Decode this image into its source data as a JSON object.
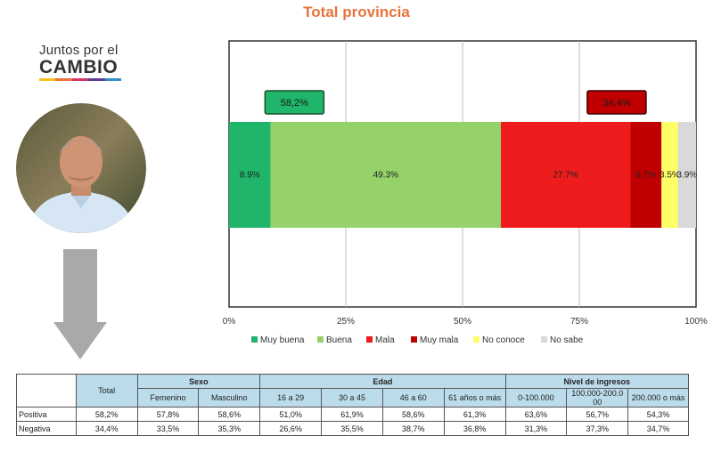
{
  "title": "Total provincia",
  "logo": {
    "line1": "Juntos por el",
    "line2": "CAMBIO",
    "stripe_colors": [
      "#f6c21c",
      "#e8733a",
      "#d6336c",
      "#5b3e96",
      "#2f8fd0"
    ]
  },
  "portrait_icon": "person-photo",
  "arrow_icon": "down-arrow",
  "chart_data": {
    "type": "bar",
    "orientation": "horizontal",
    "stacked": true,
    "title": "Total provincia",
    "xlim": [
      0,
      100
    ],
    "xticks": [
      "0%",
      "25%",
      "50%",
      "75%",
      "100%"
    ],
    "grid": true,
    "legend_position": "bottom",
    "series": [
      {
        "name": "Muy buena",
        "value": 8.9,
        "label": "8.9%",
        "color": "#1fb56a"
      },
      {
        "name": "Buena",
        "value": 49.3,
        "label": "49.3%",
        "color": "#95d26a"
      },
      {
        "name": "Mala",
        "value": 27.7,
        "label": "27.7%",
        "color": "#ee1c1c"
      },
      {
        "name": "Muy mala",
        "value": 6.7,
        "label": "6.7%",
        "color": "#c00000"
      },
      {
        "name": "No conoce",
        "value": 3.5,
        "label": "3.5%",
        "color": "#ffff66"
      },
      {
        "name": "No sabe",
        "value": 3.9,
        "label": "3.9%",
        "color": "#d9d9d9"
      }
    ],
    "annotations": [
      {
        "text": "58,2%",
        "value": 58.2,
        "color": "#1fb56a"
      },
      {
        "text": "34,4%",
        "value": 34.4,
        "color": "#c00000"
      }
    ]
  },
  "table": {
    "col_total": "Total",
    "groups": [
      "Sexo",
      "Edad",
      "Nivel de ingresos"
    ],
    "subheaders": [
      "Femenino",
      "Masculino",
      "16 a 29",
      "30 a 45",
      "46 a 60",
      "61 años o más",
      "0-100.000",
      "100.000-200.0\n00",
      "200.000 o más"
    ],
    "rows": [
      {
        "label": "Positiva",
        "values": [
          "58,2%",
          "57,8%",
          "58,6%",
          "51,0%",
          "61,9%",
          "58,6%",
          "61,3%",
          "63,6%",
          "56,7%",
          "54,3%"
        ]
      },
      {
        "label": "Negativa",
        "values": [
          "34,4%",
          "33,5%",
          "35,3%",
          "26,6%",
          "35,5%",
          "38,7%",
          "36,8%",
          "31,3%",
          "37,3%",
          "34,7%"
        ]
      }
    ]
  }
}
